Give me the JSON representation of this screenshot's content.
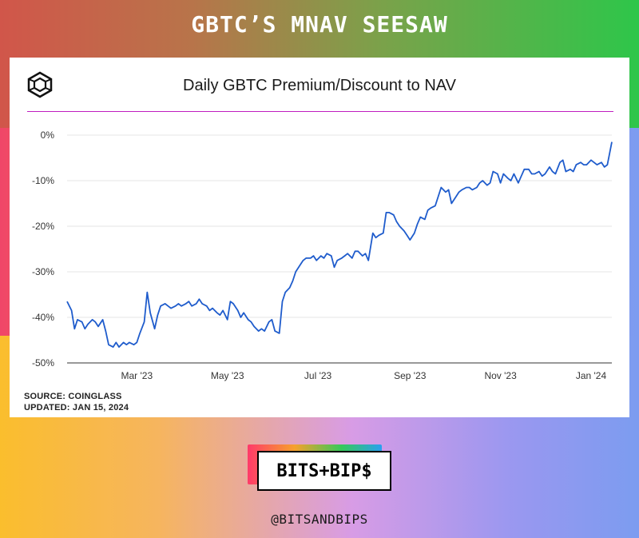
{
  "header": {
    "title": "GBTC’S MNAV SEESAW"
  },
  "card": {
    "logo_icon": "hexagon-cube-icon",
    "source_line": "SOURCE: COINGLASS",
    "updated_line": "UPDATED: JAN 15, 2024"
  },
  "brand": {
    "label": "BITS+BIP$",
    "handle": "@BITSANDBIPS"
  },
  "colors": {
    "line": "#1f5ccc",
    "title_rule": "#c01ec0",
    "grid": "#e4e4e4"
  },
  "chart_data": {
    "type": "line",
    "title": "Daily GBTC Premium/Discount to NAV",
    "xlabel": "",
    "ylabel": "",
    "ylim": [
      -50,
      0
    ],
    "yticks": [
      0,
      -10,
      -20,
      -30,
      -40,
      -50
    ],
    "ytick_labels": [
      "0%",
      "-10%",
      "-20%",
      "-30%",
      "-40%",
      "-50%"
    ],
    "xlim": [
      "2023-01-13",
      "2024-01-15"
    ],
    "xticks": [
      "2023-03-01",
      "2023-05-01",
      "2023-07-01",
      "2023-09-01",
      "2023-11-01",
      "2024-01-01"
    ],
    "xtick_labels": [
      "Mar '23",
      "May '23",
      "Jul '23",
      "Sep '23",
      "Nov '23",
      "Jan '24"
    ],
    "grid": true,
    "series": [
      {
        "x": [
          "2023-01-13",
          "2023-01-16",
          "2023-01-18",
          "2023-01-20",
          "2023-01-23",
          "2023-01-25",
          "2023-01-27",
          "2023-01-30",
          "2023-02-01",
          "2023-02-03",
          "2023-02-06",
          "2023-02-08",
          "2023-02-10",
          "2023-02-13",
          "2023-02-15",
          "2023-02-17",
          "2023-02-20",
          "2023-02-22",
          "2023-02-24",
          "2023-02-27",
          "2023-03-01",
          "2023-03-03",
          "2023-03-06",
          "2023-03-08",
          "2023-03-10",
          "2023-03-13",
          "2023-03-15",
          "2023-03-17",
          "2023-03-20",
          "2023-03-22",
          "2023-03-24",
          "2023-03-27",
          "2023-03-29",
          "2023-03-31",
          "2023-04-03",
          "2023-04-05",
          "2023-04-07",
          "2023-04-10",
          "2023-04-12",
          "2023-04-14",
          "2023-04-17",
          "2023-04-19",
          "2023-04-21",
          "2023-04-24",
          "2023-04-26",
          "2023-04-28",
          "2023-05-01",
          "2023-05-03",
          "2023-05-05",
          "2023-05-08",
          "2023-05-10",
          "2023-05-12",
          "2023-05-15",
          "2023-05-17",
          "2023-05-19",
          "2023-05-22",
          "2023-05-24",
          "2023-05-26",
          "2023-05-29",
          "2023-05-31",
          "2023-06-02",
          "2023-06-05",
          "2023-06-07",
          "2023-06-09",
          "2023-06-12",
          "2023-06-14",
          "2023-06-16",
          "2023-06-19",
          "2023-06-21",
          "2023-06-23",
          "2023-06-26",
          "2023-06-28",
          "2023-06-30",
          "2023-07-03",
          "2023-07-05",
          "2023-07-07",
          "2023-07-10",
          "2023-07-12",
          "2023-07-14",
          "2023-07-17",
          "2023-07-19",
          "2023-07-21",
          "2023-07-24",
          "2023-07-26",
          "2023-07-28",
          "2023-07-31",
          "2023-08-02",
          "2023-08-04",
          "2023-08-07",
          "2023-08-09",
          "2023-08-11",
          "2023-08-14",
          "2023-08-16",
          "2023-08-18",
          "2023-08-21",
          "2023-08-23",
          "2023-08-25",
          "2023-08-28",
          "2023-08-30",
          "2023-09-01",
          "2023-09-04",
          "2023-09-06",
          "2023-09-08",
          "2023-09-11",
          "2023-09-13",
          "2023-09-15",
          "2023-09-18",
          "2023-09-20",
          "2023-09-22",
          "2023-09-25",
          "2023-09-27",
          "2023-09-29",
          "2023-10-02",
          "2023-10-04",
          "2023-10-06",
          "2023-10-09",
          "2023-10-11",
          "2023-10-13",
          "2023-10-16",
          "2023-10-18",
          "2023-10-20",
          "2023-10-23",
          "2023-10-25",
          "2023-10-27",
          "2023-10-30",
          "2023-11-01",
          "2023-11-03",
          "2023-11-06",
          "2023-11-08",
          "2023-11-10",
          "2023-11-13",
          "2023-11-15",
          "2023-11-17",
          "2023-11-20",
          "2023-11-22",
          "2023-11-24",
          "2023-11-27",
          "2023-11-29",
          "2023-12-01",
          "2023-12-04",
          "2023-12-06",
          "2023-12-08",
          "2023-12-11",
          "2023-12-13",
          "2023-12-15",
          "2023-12-18",
          "2023-12-20",
          "2023-12-22",
          "2023-12-25",
          "2023-12-27",
          "2023-12-29",
          "2024-01-01",
          "2024-01-03",
          "2024-01-05",
          "2024-01-08",
          "2024-01-10",
          "2024-01-12",
          "2024-01-15"
        ],
        "y": [
          -36.5,
          -38.5,
          -42.5,
          -40.5,
          -41.0,
          -42.5,
          -41.5,
          -40.5,
          -41.0,
          -42.0,
          -40.5,
          -43.0,
          -46.0,
          -46.5,
          -45.5,
          -46.5,
          -45.5,
          -46.0,
          -45.5,
          -46.0,
          -45.5,
          -43.5,
          -41.0,
          -34.5,
          -39.0,
          -42.5,
          -39.5,
          -37.5,
          -37.0,
          -37.5,
          -38.0,
          -37.5,
          -37.0,
          -37.5,
          -37.0,
          -36.5,
          -37.5,
          -37.0,
          -36.0,
          -37.0,
          -37.5,
          -38.5,
          -38.0,
          -39.0,
          -39.5,
          -38.5,
          -40.5,
          -36.5,
          -37.0,
          -38.5,
          -40.0,
          -39.0,
          -40.5,
          -41.0,
          -42.0,
          -43.0,
          -42.5,
          -43.0,
          -41.0,
          -40.5,
          -43.0,
          -43.5,
          -36.5,
          -34.5,
          -33.5,
          -32.0,
          -30.0,
          -28.5,
          -27.5,
          -27.0,
          -27.0,
          -26.5,
          -27.5,
          -26.5,
          -27.0,
          -26.0,
          -26.5,
          -29.0,
          -27.5,
          -27.0,
          -26.5,
          -26.0,
          -27.0,
          -25.5,
          -25.5,
          -26.5,
          -26.0,
          -27.5,
          -21.5,
          -22.5,
          -22.0,
          -21.5,
          -17.0,
          -17.0,
          -17.5,
          -19.0,
          -20.0,
          -21.0,
          -22.0,
          -23.0,
          -21.5,
          -19.5,
          -18.0,
          -18.5,
          -16.5,
          -16.0,
          -15.5,
          -13.5,
          -11.5,
          -12.5,
          -12.0,
          -15.0,
          -13.5,
          -12.5,
          -12.0,
          -11.5,
          -11.5,
          -12.0,
          -11.5,
          -10.5,
          -10.0,
          -11.0,
          -10.5,
          -8.0,
          -8.5,
          -10.5,
          -8.5,
          -9.5,
          -10.0,
          -8.5,
          -10.5,
          -9.0,
          -7.5,
          -7.5,
          -8.5,
          -8.5,
          -8.0,
          -9.0,
          -8.5,
          -7.0,
          -8.0,
          -8.5,
          -6.0,
          -5.5,
          -8.0,
          -7.5,
          -8.0,
          -6.5,
          -6.0,
          -6.5,
          -6.5,
          -5.5,
          -6.0,
          -6.5,
          -6.0,
          -7.0,
          -6.5,
          -1.5
        ]
      }
    ]
  }
}
